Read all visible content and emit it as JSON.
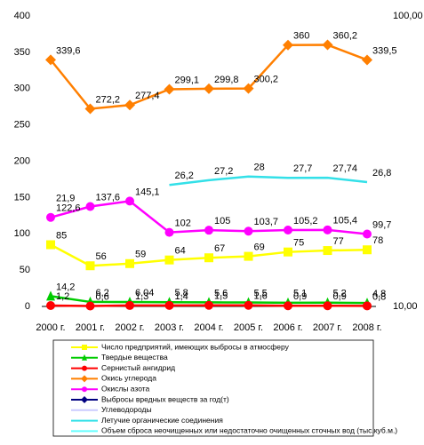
{
  "chart_data": {
    "type": "line",
    "categories": [
      "2000 г.",
      "2001 г.",
      "2002 г.",
      "2003 г.",
      "2004 г.",
      "2005 г.",
      "2006 г.",
      "2007 г.",
      "2008 г."
    ],
    "ylim": [
      0,
      400
    ],
    "yticks": [
      0,
      50,
      100,
      150,
      200,
      250,
      300,
      350,
      400
    ],
    "y2lim": [
      10,
      100
    ],
    "y2log": true,
    "y2ticks": [
      {
        "value": 10,
        "label": "10,00"
      },
      {
        "value": 100,
        "label": "100,00"
      }
    ],
    "series": [
      {
        "name": "Число предприятий, имеющих выбросы в атмосферу",
        "color": "#ffff00",
        "marker": "square",
        "values": [
          85,
          56,
          59,
          64,
          67,
          69,
          75,
          77,
          78
        ]
      },
      {
        "name": "Твердые вещества",
        "color": "#00cc00",
        "marker": "triangle",
        "values": [
          14.2,
          6.2,
          6.04,
          5.8,
          5.6,
          5.5,
          5.1,
          5.2,
          4.8
        ],
        "value_labels": [
          "14,2",
          "6,2",
          "6,04",
          "5,8",
          "5,6",
          "5,5",
          "5,1",
          "5,2",
          "4,8"
        ]
      },
      {
        "name": "Сернистый ангидрид",
        "color": "#ff0000",
        "marker": "circle",
        "values": [
          1.2,
          0.6,
          1.3,
          1.4,
          1.5,
          1.6,
          0.9,
          0.9,
          0.8
        ],
        "value_labels": [
          "1,2",
          "0,6",
          "1,3",
          "1,4",
          "1,5",
          "1,6",
          "0,9",
          "0,9",
          "0,8"
        ]
      },
      {
        "name": "Окись углерода",
        "color": "#ff7f00",
        "marker": "diamond",
        "values": [
          339.6,
          272.2,
          277.4,
          299.1,
          299.8,
          300.2,
          360,
          360.2,
          339.5
        ],
        "value_labels": [
          "339,6",
          "272,2",
          "277,4",
          "299,1",
          "299,8",
          "300,2",
          "360",
          "360,2",
          "339,5"
        ]
      },
      {
        "name": "Окислы азота",
        "color": "#ff00ff",
        "marker": "circle",
        "values": [
          122.6,
          137.6,
          145.1,
          102,
          105,
          103.7,
          105.2,
          105.4,
          99.7
        ],
        "value_labels": [
          "122,6",
          "137,6",
          "145,1",
          "102",
          "105",
          "103,7",
          "105,2",
          "105,4",
          "99,7"
        ]
      },
      {
        "name": "Выбросы вредных веществ за год(т)",
        "color": "#000080",
        "marker": "diamond",
        "values": [
          null,
          null,
          null,
          null,
          null,
          null,
          null,
          null,
          null
        ]
      },
      {
        "name": "Углеводороды",
        "color": "#ccccff",
        "marker": "none",
        "values": [
          null,
          null,
          null,
          null,
          null,
          null,
          null,
          null,
          null
        ]
      },
      {
        "name": "Летучие органические соединения",
        "color": "#33e0e8",
        "marker": "none",
        "axis": "y2",
        "values": [
          21.9,
          null,
          null,
          26.2,
          27.2,
          28,
          27.7,
          27.74,
          26.8
        ],
        "value_labels": [
          "21,9",
          null,
          null,
          "26,2",
          "27,2",
          "28",
          "27,7",
          "27,74",
          "26,8"
        ]
      },
      {
        "name": "Объем сброса неочищенных или недостаточно очищенных сточных вод (тыс.куб.м.)",
        "color": "#66ffff",
        "marker": "none",
        "axis": "y2",
        "values": [
          null,
          null,
          null,
          null,
          null,
          null,
          null,
          null,
          null
        ]
      }
    ]
  }
}
